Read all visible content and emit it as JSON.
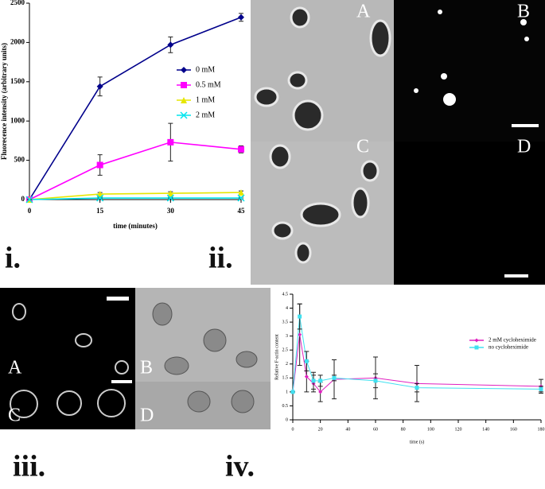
{
  "figure_labels": {
    "i": "i.",
    "ii": "ii.",
    "iii": "iii.",
    "iv": "iv."
  },
  "image_labels": {
    "ii": [
      "A",
      "B",
      "C",
      "D"
    ],
    "iii": [
      "A",
      "B",
      "C",
      "D"
    ]
  },
  "chart_data": [
    {
      "type": "line",
      "x_label": "time (minutes)",
      "y_label": "Fluorecence intensity (arbitrary units)",
      "x": [
        0,
        15,
        30,
        45
      ],
      "xlim": [
        0,
        45
      ],
      "xticks": [
        0,
        15,
        30,
        45
      ],
      "ylim": [
        0,
        2500
      ],
      "yticks": [
        0,
        500,
        1000,
        1500,
        2000,
        2500
      ],
      "legend": "right",
      "series": [
        {
          "name": "0 mM",
          "color": "#00008b",
          "marker": "diamond",
          "values": [
            0,
            1440,
            1970,
            2320
          ],
          "errors": [
            0,
            120,
            100,
            50
          ]
        },
        {
          "name": "0.5 mM",
          "color": "#ff00ff",
          "marker": "square",
          "values": [
            0,
            440,
            730,
            640
          ],
          "errors": [
            0,
            130,
            240,
            45
          ]
        },
        {
          "name": "1 mM",
          "color": "#e6e600",
          "marker": "triangle",
          "values": [
            0,
            70,
            80,
            90
          ],
          "errors": [
            0,
            20,
            20,
            20
          ]
        },
        {
          "name": "2 mM",
          "color": "#00e5ee",
          "marker": "x",
          "values": [
            0,
            20,
            20,
            20
          ],
          "errors": [
            0,
            10,
            10,
            10
          ]
        }
      ]
    },
    {
      "type": "line",
      "x_label": "time (s)",
      "y_label": "Relative F-actin content",
      "x": [
        0,
        5,
        10,
        15,
        20,
        30,
        60,
        90,
        180
      ],
      "xlim": [
        0,
        180
      ],
      "xticks": [
        0,
        20,
        40,
        60,
        80,
        100,
        120,
        140,
        160,
        180
      ],
      "ylim": [
        0,
        4.5
      ],
      "yticks": [
        0,
        0.5,
        1,
        1.5,
        2,
        2.5,
        3,
        3.5,
        4,
        4.5
      ],
      "legend": "right",
      "series": [
        {
          "name": "2 mM cycloheximide",
          "color": "#e020c0",
          "marker": "diamond",
          "values": [
            1,
            3.05,
            1.55,
            1.3,
            1.0,
            1.45,
            1.5,
            1.3,
            1.2
          ],
          "errors": [
            0,
            1.1,
            0.55,
            0.3,
            0.35,
            0.7,
            0.75,
            0.65,
            0.25
          ]
        },
        {
          "name": "no cycloheximide",
          "color": "#40e0f0",
          "marker": "square",
          "values": [
            1,
            3.7,
            2.1,
            1.4,
            1.4,
            1.5,
            1.4,
            1.15,
            1.1
          ],
          "errors": [
            0,
            0.45,
            0.35,
            0.3,
            0.2,
            0.1,
            0.25,
            0.15,
            0.1
          ]
        }
      ]
    }
  ]
}
